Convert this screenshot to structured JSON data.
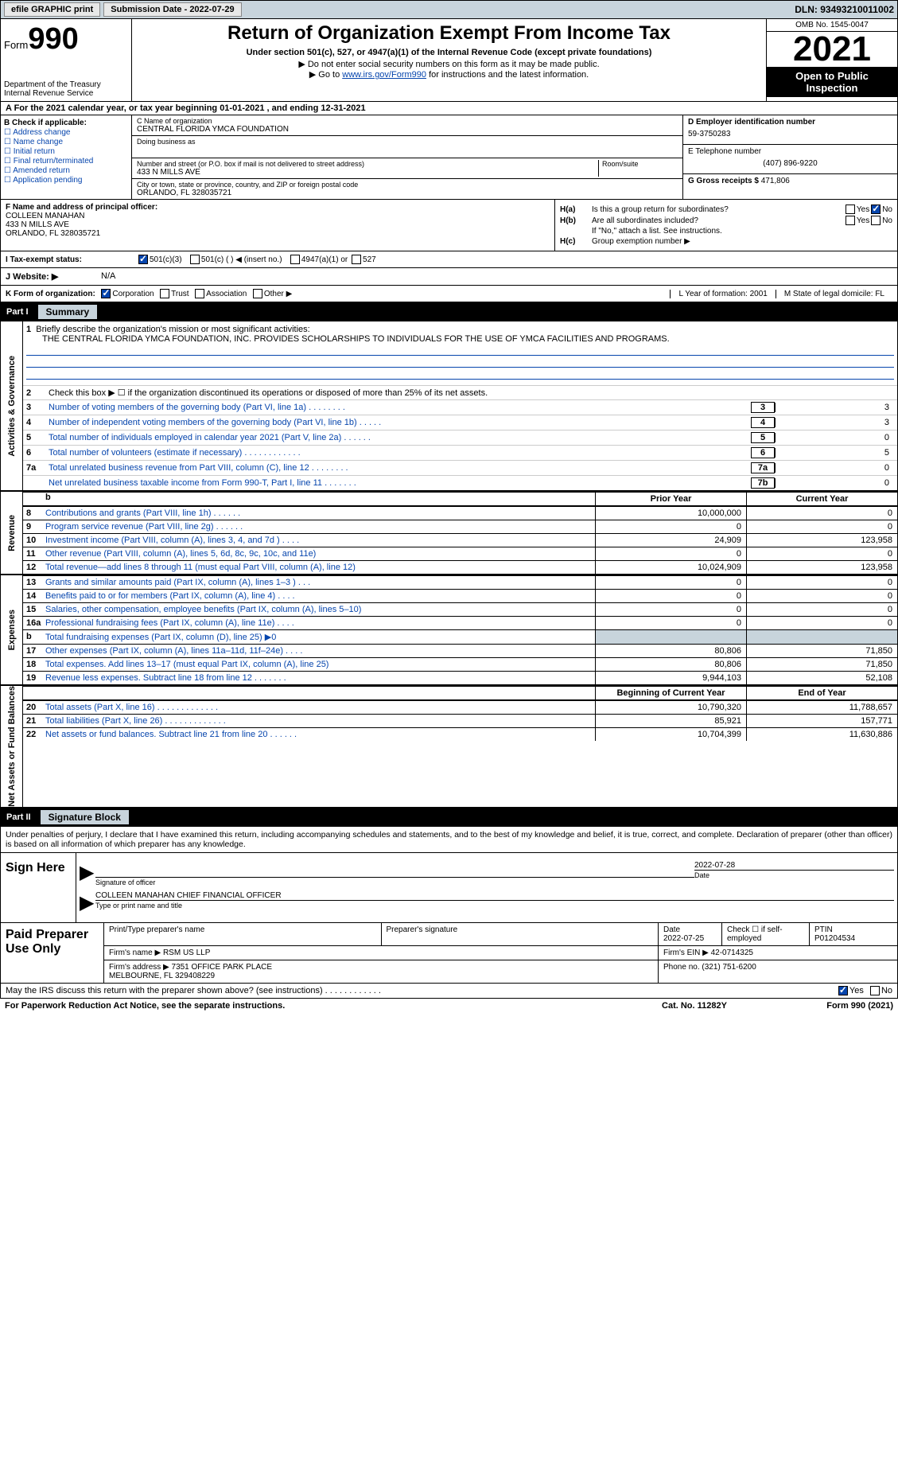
{
  "topbar": {
    "efile_btn": "efile GRAPHIC print",
    "submission": "Submission Date - 2022-07-29",
    "dln": "DLN: 93493210011002"
  },
  "header": {
    "form_label": "Form",
    "form_num": "990",
    "dept": "Department of the Treasury",
    "irs": "Internal Revenue Service",
    "title": "Return of Organization Exempt From Income Tax",
    "sub1": "Under section 501(c), 527, or 4947(a)(1) of the Internal Revenue Code (except private foundations)",
    "sub2": "▶ Do not enter social security numbers on this form as it may be made public.",
    "sub3_pre": "▶ Go to ",
    "sub3_link": "www.irs.gov/Form990",
    "sub3_post": " for instructions and the latest information.",
    "omb": "OMB No. 1545-0047",
    "year": "2021",
    "open": "Open to Public Inspection"
  },
  "rowA": "A For the 2021 calendar year, or tax year beginning 01-01-2021    , and ending 12-31-2021",
  "colB": {
    "title": "B Check if applicable:",
    "items": [
      "Address change",
      "Name change",
      "Initial return",
      "Final return/terminated",
      "Amended return",
      "Application pending"
    ]
  },
  "colC": {
    "name_lbl": "C Name of organization",
    "name": "CENTRAL FLORIDA YMCA FOUNDATION",
    "dba_lbl": "Doing business as",
    "addr_lbl": "Number and street (or P.O. box if mail is not delivered to street address)",
    "room_lbl": "Room/suite",
    "addr": "433 N MILLS AVE",
    "city_lbl": "City or town, state or province, country, and ZIP or foreign postal code",
    "city": "ORLANDO, FL  328035721"
  },
  "colD": {
    "ein_lbl": "D Employer identification number",
    "ein": "59-3750283",
    "phone_lbl": "E Telephone number",
    "phone": "(407) 896-9220",
    "gross_lbl": "G Gross receipts $",
    "gross": "471,806"
  },
  "colF": {
    "lbl": "F Name and address of principal officer:",
    "name": "COLLEEN MANAHAN",
    "addr1": "433 N MILLS AVE",
    "addr2": "ORLANDO, FL  328035721"
  },
  "colH": {
    "ha": "Is this a group return for subordinates?",
    "hb": "Are all subordinates included?",
    "hb_note": "If \"No,\" attach a list. See instructions.",
    "hc": "Group exemption number ▶"
  },
  "rowI": {
    "lbl": "I    Tax-exempt status:",
    "opt1": "501(c)(3)",
    "opt2": "501(c) (   ) ◀ (insert no.)",
    "opt3": "4947(a)(1) or",
    "opt4": "527"
  },
  "rowJ": {
    "lbl": "J   Website: ▶",
    "val": "N/A"
  },
  "rowK": {
    "lbl": "K Form of organization:",
    "opts": [
      "Corporation",
      "Trust",
      "Association",
      "Other ▶"
    ],
    "L": "L Year of formation: 2001",
    "M": "M State of legal domicile: FL"
  },
  "part1": {
    "num": "Part I",
    "title": "Summary"
  },
  "summary": {
    "line1_lbl": "Briefly describe the organization's mission or most significant activities:",
    "line1_txt": "THE CENTRAL FLORIDA YMCA FOUNDATION, INC. PROVIDES SCHOLARSHIPS TO INDIVIDUALS FOR THE USE OF YMCA FACILITIES AND PROGRAMS.",
    "line2": "Check this box ▶ ☐  if the organization discontinued its operations or disposed of more than 25% of its net assets.",
    "line3": "Number of voting members of the governing body (Part VI, line 1a)   .    .    .    .    .    .    .    .",
    "line4": "Number of independent voting members of the governing body (Part VI, line 1b)   .    .    .    .    .",
    "line5": "Total number of individuals employed in calendar year 2021 (Part V, line 2a)   .    .    .    .    .    .",
    "line6": "Total number of volunteers (estimate if necessary)    .    .    .    .    .    .    .    .    .    .    .    .",
    "line7a": "Total unrelated business revenue from Part VIII, column (C), line 12    .    .    .    .    .    .    .    .",
    "line7b": "Net unrelated business taxable income from Form 990-T, Part I, line 11    .    .    .    .    .    .    .",
    "v3": "3",
    "v4": "3",
    "v5": "0",
    "v6": "5",
    "v7a": "0",
    "v7b": "0",
    "side1": "Activities & Governance"
  },
  "revenue": {
    "side": "Revenue",
    "hdr_prior": "Prior Year",
    "hdr_curr": "Current Year",
    "rows": [
      {
        "n": "8",
        "t": "Contributions and grants (Part VIII, line 1h)    .    .    .    .    .    .",
        "p": "10,000,000",
        "c": "0"
      },
      {
        "n": "9",
        "t": "Program service revenue (Part VIII, line 2g)    .    .    .    .    .    .",
        "p": "0",
        "c": "0"
      },
      {
        "n": "10",
        "t": "Investment income (Part VIII, column (A), lines 3, 4, and 7d )    .    .    .    .",
        "p": "24,909",
        "c": "123,958"
      },
      {
        "n": "11",
        "t": "Other revenue (Part VIII, column (A), lines 5, 6d, 8c, 9c, 10c, and 11e)",
        "p": "0",
        "c": "0"
      },
      {
        "n": "12",
        "t": "Total revenue—add lines 8 through 11 (must equal Part VIII, column (A), line 12)",
        "p": "10,024,909",
        "c": "123,958"
      }
    ]
  },
  "expenses": {
    "side": "Expenses",
    "rows": [
      {
        "n": "13",
        "t": "Grants and similar amounts paid (Part IX, column (A), lines 1–3 )   .    .    .",
        "p": "0",
        "c": "0"
      },
      {
        "n": "14",
        "t": "Benefits paid to or for members (Part IX, column (A), line 4)    .    .    .    .",
        "p": "0",
        "c": "0"
      },
      {
        "n": "15",
        "t": "Salaries, other compensation, employee benefits (Part IX, column (A), lines 5–10)",
        "p": "0",
        "c": "0"
      },
      {
        "n": "16a",
        "t": "Professional fundraising fees (Part IX, column (A), line 11e)    .    .    .    .",
        "p": "0",
        "c": "0"
      },
      {
        "n": "b",
        "t": "Total fundraising expenses (Part IX, column (D), line 25) ▶0",
        "p": "",
        "c": "",
        "shade": true
      },
      {
        "n": "17",
        "t": "Other expenses (Part IX, column (A), lines 11a–11d, 11f–24e)    .    .    .    .",
        "p": "80,806",
        "c": "71,850"
      },
      {
        "n": "18",
        "t": "Total expenses. Add lines 13–17 (must equal Part IX, column (A), line 25)",
        "p": "80,806",
        "c": "71,850"
      },
      {
        "n": "19",
        "t": "Revenue less expenses. Subtract line 18 from line 12    .    .    .    .    .    .    .",
        "p": "9,944,103",
        "c": "52,108"
      }
    ]
  },
  "netassets": {
    "side": "Net Assets or Fund Balances",
    "hdr_beg": "Beginning of Current Year",
    "hdr_end": "End of Year",
    "rows": [
      {
        "n": "20",
        "t": "Total assets (Part X, line 16)   .    .    .    .    .    .    .    .    .    .    .    .    .",
        "p": "10,790,320",
        "c": "11,788,657"
      },
      {
        "n": "21",
        "t": "Total liabilities (Part X, line 26)   .    .    .    .    .    .    .    .    .    .    .    .    .",
        "p": "85,921",
        "c": "157,771"
      },
      {
        "n": "22",
        "t": "Net assets or fund balances. Subtract line 21 from line 20   .    .    .    .    .    .",
        "p": "10,704,399",
        "c": "11,630,886"
      }
    ]
  },
  "part2": {
    "num": "Part II",
    "title": "Signature Block"
  },
  "sig": {
    "intro": "Under penalties of perjury, I declare that I have examined this return, including accompanying schedules and statements, and to the best of my knowledge and belief, it is true, correct, and complete. Declaration of preparer (other than officer) is based on all information of which preparer has any knowledge.",
    "sign_here": "Sign Here",
    "sig_officer_lbl": "Signature of officer",
    "date_lbl": "Date",
    "date": "2022-07-28",
    "name": "COLLEEN MANAHAN  CHIEF FINANCIAL OFFICER",
    "name_lbl": "Type or print name and title"
  },
  "prep": {
    "title": "Paid Preparer Use Only",
    "r1": {
      "c1": "Print/Type preparer's name",
      "c2": "Preparer's signature",
      "c3": "Date\n2022-07-25",
      "c4": "Check ☐  if self-employed",
      "c5": "PTIN\nP01204534"
    },
    "r2": {
      "c1": "Firm's name    ▶ RSM US LLP",
      "c2": "Firm's EIN ▶ 42-0714325"
    },
    "r3": {
      "c1": "Firm's address ▶ 7351 OFFICE PARK PLACE\n                           MELBOURNE, FL  329408229",
      "c2": "Phone no. (321) 751-6200"
    }
  },
  "discuss": "May the IRS discuss this return with the preparer shown above? (see instructions)    .    .    .    .    .    .    .    .    .    .    .    .",
  "footer": {
    "left": "For Paperwork Reduction Act Notice, see the separate instructions.",
    "mid": "Cat. No. 11282Y",
    "right": "Form 990 (2021)"
  }
}
